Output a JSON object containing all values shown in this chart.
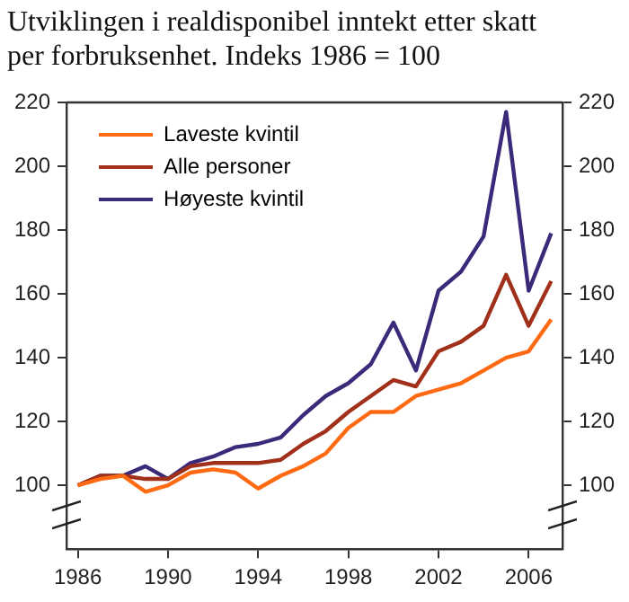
{
  "chart_data": {
    "type": "line",
    "title": "Utviklingen i realdisponibel inntekt etter skatt per forbruksenhet. Indeks 1986 = 100",
    "categories": [
      "1986",
      null,
      null,
      null,
      "1990",
      null,
      null,
      null,
      "1994",
      null,
      null,
      null,
      "1998",
      null,
      null,
      null,
      "2002",
      null,
      null,
      null,
      "2006",
      null
    ],
    "series": [
      {
        "name": "Laveste kvintil",
        "color": "#ff6a13",
        "values": [
          100,
          102,
          103,
          98,
          100,
          104,
          105,
          104,
          99,
          103,
          106,
          110,
          118,
          123,
          123,
          128,
          130,
          132,
          136,
          140,
          142,
          152
        ]
      },
      {
        "name": "Alle personer",
        "color": "#a0301a",
        "values": [
          100,
          103,
          103,
          102,
          102,
          106,
          107,
          107,
          107,
          108,
          113,
          117,
          123,
          128,
          133,
          131,
          142,
          145,
          150,
          166,
          150,
          164
        ]
      },
      {
        "name": "Høyeste kvintil",
        "color": "#3b2a7a",
        "values": [
          100,
          103,
          103,
          106,
          102,
          107,
          109,
          112,
          113,
          115,
          122,
          128,
          132,
          138,
          151,
          136,
          161,
          167,
          178,
          217,
          161,
          179
        ]
      }
    ],
    "ylim": [
      80,
      220
    ],
    "yticks": [
      100,
      120,
      140,
      160,
      180,
      200,
      220
    ],
    "y2lim": [
      80,
      220
    ],
    "y2ticks": [
      100,
      120,
      140,
      160,
      180,
      200,
      220
    ],
    "legend": "top left",
    "marker": "none",
    "line_style": "solid"
  }
}
